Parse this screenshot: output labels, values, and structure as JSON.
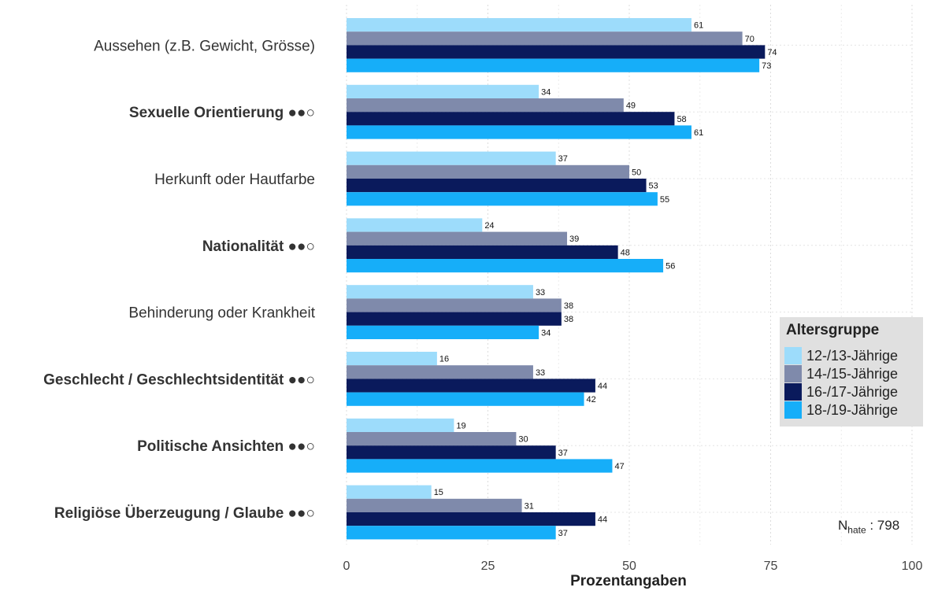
{
  "chart_data": {
    "type": "bar",
    "orientation": "horizontal",
    "categories": [
      {
        "label": "Aussehen (z.B. Gewicht, Grösse)",
        "bold": false
      },
      {
        "label": "Sexuelle Orientierung ●●○",
        "bold": true
      },
      {
        "label": "Herkunft oder Hautfarbe",
        "bold": false
      },
      {
        "label": "Nationalität ●●○",
        "bold": true
      },
      {
        "label": "Behinderung oder Krankheit",
        "bold": false
      },
      {
        "label": "Geschlecht / Geschlechtsidentität ●●○",
        "bold": true
      },
      {
        "label": "Politische Ansichten ●●○",
        "bold": true
      },
      {
        "label": "Religiöse Überzeugung / Glaube ●●○",
        "bold": true
      }
    ],
    "series": [
      {
        "name": "12-/13-Jährige",
        "color": "#9ddcfb",
        "values": [
          61,
          34,
          37,
          24,
          33,
          16,
          19,
          15
        ]
      },
      {
        "name": "14-/15-Jährige",
        "color": "#7f8aab",
        "values": [
          70,
          49,
          50,
          39,
          38,
          33,
          30,
          31
        ]
      },
      {
        "name": "16-/17-Jährige",
        "color": "#0a1a5c",
        "values": [
          74,
          58,
          53,
          48,
          38,
          44,
          37,
          44
        ]
      },
      {
        "name": "18-/19-Jährige",
        "color": "#16aef9",
        "values": [
          73,
          61,
          55,
          56,
          34,
          42,
          47,
          37
        ]
      }
    ],
    "xlabel": "Prozentangaben",
    "xlim": [
      0,
      100
    ],
    "xticks": [
      "0",
      "25",
      "50",
      "75",
      "100"
    ],
    "grid": true,
    "legend": {
      "title": "Altersgruppe",
      "position": "right"
    }
  },
  "note": {
    "n_main": "N",
    "n_sub": "hate",
    "n_value": " : 798"
  }
}
